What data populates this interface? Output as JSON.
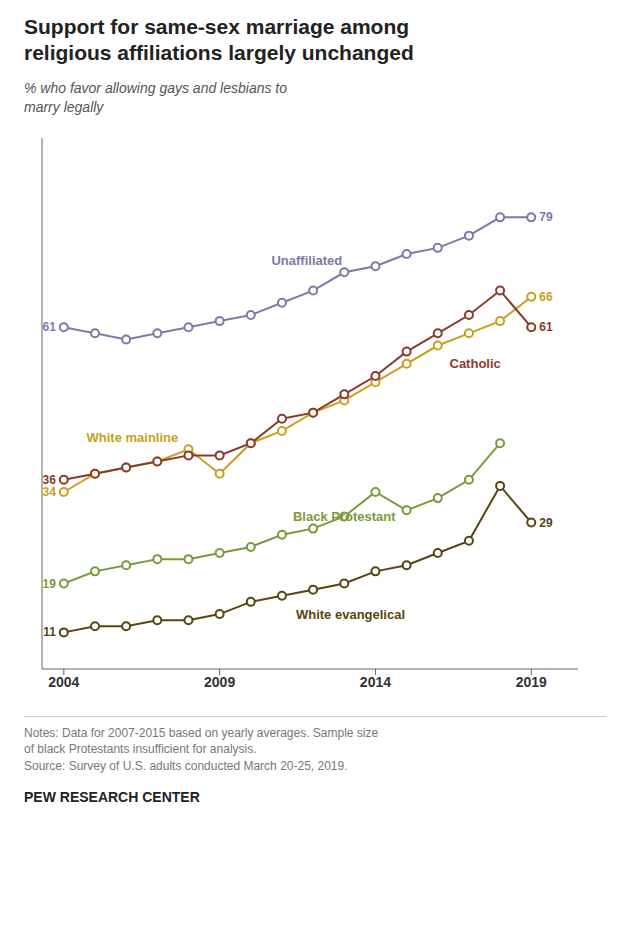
{
  "chart_data": {
    "type": "line",
    "title": "Support for same-sex marriage among\nreligious affiliations largely unchanged",
    "subtitle": "% who favor allowing gays and lesbians to\nmarry legally",
    "notes": "Notes: Data for 2007-2015 based on yearly averages. Sample size\nof black Protestants insufficient for analysis.\nSource: Survey of U.S. adults conducted March 20-25, 2019.",
    "footer": "PEW RESEARCH CENTER",
    "x": [
      2004,
      2005,
      2006,
      2007,
      2008,
      2009,
      2010,
      2011,
      2012,
      2013,
      2014,
      2015,
      2016,
      2017,
      2018,
      2019
    ],
    "series": [
      {
        "name": "Unaffiliated",
        "color": "#7b7aaa",
        "marker": "circle",
        "values": [
          61,
          60,
          59,
          60,
          61,
          62,
          63,
          65,
          67,
          70,
          71,
          73,
          74,
          76,
          79,
          79
        ],
        "value_labels": [
          "61",
          null,
          null,
          null,
          null,
          null,
          null,
          null,
          null,
          null,
          null,
          null,
          null,
          null,
          null,
          "79"
        ]
      },
      {
        "name": "White mainline",
        "color": "#c8a020",
        "marker": "circle",
        "values": [
          34,
          37,
          38,
          39,
          41,
          37,
          42,
          44,
          47,
          49,
          52,
          55,
          58,
          60,
          62,
          66
        ],
        "value_labels": [
          "34",
          null,
          null,
          null,
          null,
          null,
          null,
          null,
          null,
          null,
          null,
          null,
          null,
          null,
          null,
          "66"
        ]
      },
      {
        "name": "Catholic",
        "color": "#8b3a2a",
        "marker": "circle",
        "values": [
          36,
          37,
          38,
          39,
          40,
          40,
          42,
          46,
          47,
          50,
          53,
          57,
          60,
          63,
          67,
          61
        ],
        "value_labels": [
          "36",
          null,
          null,
          null,
          null,
          null,
          null,
          null,
          null,
          null,
          null,
          null,
          null,
          null,
          null,
          "61"
        ]
      },
      {
        "name": "Black Protestant",
        "color": "#7a9a3a",
        "marker": "circle",
        "values": [
          19,
          21,
          22,
          23,
          23,
          24,
          25,
          27,
          28,
          30,
          34,
          31,
          33,
          36,
          42,
          null
        ],
        "value_labels": [
          "19",
          null,
          null,
          null,
          null,
          null,
          null,
          null,
          null,
          null,
          null,
          null,
          null,
          null,
          null,
          null
        ]
      },
      {
        "name": "White evangelical",
        "color": "#5a4510",
        "marker": "circle",
        "values": [
          11,
          12,
          12,
          13,
          13,
          14,
          16,
          17,
          18,
          19,
          21,
          22,
          24,
          26,
          35,
          29
        ],
        "value_labels": [
          "11",
          null,
          null,
          null,
          null,
          null,
          null,
          null,
          null,
          null,
          null,
          null,
          null,
          null,
          null,
          "29"
        ]
      }
    ],
    "annotations": [
      {
        "text": "Unaffiliated",
        "x": 2011.8,
        "y": 72,
        "color": "#7b7aaa"
      },
      {
        "text": "White mainline",
        "x": 2006.2,
        "y": 43,
        "color": "#c8a020"
      },
      {
        "text": "Catholic",
        "x": 2017.2,
        "y": 55,
        "color": "#8b3a2a"
      },
      {
        "text": "Black Protestant",
        "x": 2013.0,
        "y": 30,
        "color": "#7a9a3a"
      },
      {
        "text": "White evangelical",
        "x": 2013.2,
        "y": 14,
        "color": "#5a4510"
      }
    ],
    "xlim": [
      2003.3,
      2020.5
    ],
    "ylim": [
      5,
      92
    ],
    "xticks": [
      2004,
      2009,
      2014,
      2019
    ],
    "grid": false,
    "tick_labels": "x"
  }
}
